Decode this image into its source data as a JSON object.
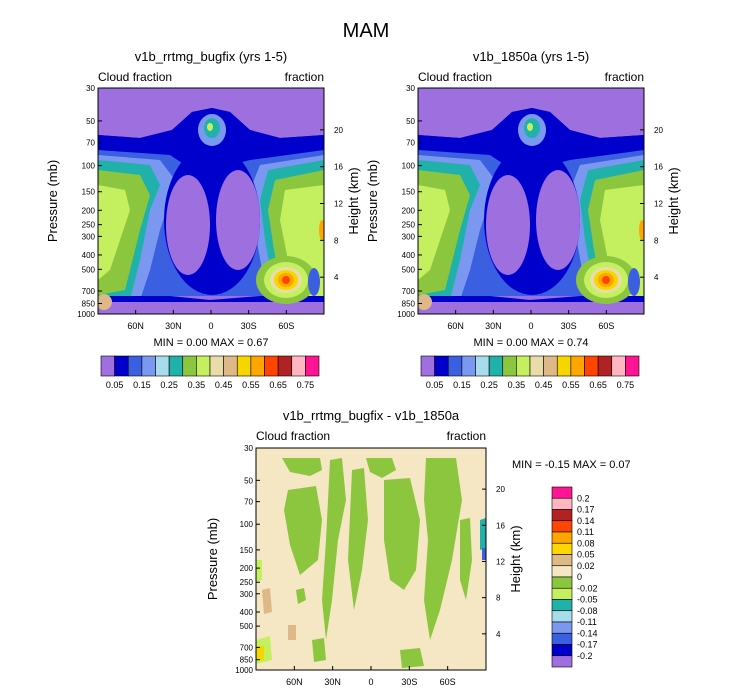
{
  "page_title": "MAM",
  "chart_data": [
    {
      "type": "contour",
      "title": "v1b_rrtmg_bugfix (yrs 1-5)",
      "left_label": "Cloud fraction",
      "right_label": "fraction",
      "ylabel": "Pressure (mb)",
      "ylabel_right": "Height (km)",
      "pressure_ticks": [
        "30",
        "50",
        "70",
        "100",
        "150",
        "200",
        "250",
        "300",
        "400",
        "500",
        "700",
        "850",
        "1000"
      ],
      "height_ticks": [
        "20",
        "16",
        "12",
        "8",
        "4"
      ],
      "lat_ticks": [
        "60N",
        "30N",
        "0",
        "30S",
        "60S"
      ],
      "stats": "MIN =   0.00   MAX =   0.67",
      "colorbar_labels": [
        "0.05",
        "0.15",
        "0.25",
        "0.35",
        "0.45",
        "0.55",
        "0.65",
        "0.75"
      ],
      "colorbar_colors": [
        "#9e6fdf",
        "#0000cd",
        "#3a5fe0",
        "#7b98f0",
        "#a8dcec",
        "#20b2aa",
        "#8cc63f",
        "#c4f060",
        "#e8dca8",
        "#deb887",
        "#f5d600",
        "#ffa500",
        "#ff4500",
        "#b22222",
        "#ffb6c1",
        "#ff1493"
      ]
    },
    {
      "type": "contour",
      "title": "v1b_1850a (yrs 1-5)",
      "left_label": "Cloud fraction",
      "right_label": "fraction",
      "ylabel": "Pressure (mb)",
      "ylabel_right": "Height (km)",
      "pressure_ticks": [
        "30",
        "50",
        "70",
        "100",
        "150",
        "200",
        "250",
        "300",
        "400",
        "500",
        "700",
        "850",
        "1000"
      ],
      "height_ticks": [
        "20",
        "16",
        "12",
        "8",
        "4"
      ],
      "lat_ticks": [
        "60N",
        "30N",
        "0",
        "30S",
        "60S"
      ],
      "stats": "MIN =   0.00   MAX =   0.74",
      "colorbar_labels": [
        "0.05",
        "0.15",
        "0.25",
        "0.35",
        "0.45",
        "0.55",
        "0.65",
        "0.75"
      ],
      "colorbar_colors": [
        "#9e6fdf",
        "#0000cd",
        "#3a5fe0",
        "#7b98f0",
        "#a8dcec",
        "#20b2aa",
        "#8cc63f",
        "#c4f060",
        "#e8dca8",
        "#deb887",
        "#f5d600",
        "#ffa500",
        "#ff4500",
        "#b22222",
        "#ffb6c1",
        "#ff1493"
      ]
    },
    {
      "type": "contour",
      "title": "v1b_rrtmg_bugfix - v1b_1850a",
      "left_label": "Cloud fraction",
      "right_label": "fraction",
      "ylabel": "Pressure (mb)",
      "ylabel_right": "Height (km)",
      "pressure_ticks": [
        "30",
        "50",
        "70",
        "100",
        "150",
        "200",
        "250",
        "300",
        "400",
        "500",
        "700",
        "850",
        "1000"
      ],
      "height_ticks": [
        "20",
        "16",
        "12",
        "8",
        "4"
      ],
      "lat_ticks": [
        "60N",
        "30N",
        "0",
        "30S",
        "60S"
      ],
      "stats": "MIN =  -0.15   MAX =  0.07",
      "colorbar_labels": [
        "0.2",
        "0.17",
        "0.14",
        "0.11",
        "0.08",
        "0.05",
        "0.02",
        "0",
        "-0.02",
        "-0.05",
        "-0.08",
        "-0.11",
        "-0.14",
        "-0.17",
        "-0.2"
      ],
      "colorbar_colors": [
        "#ff1493",
        "#ffb6c1",
        "#b22222",
        "#ff4500",
        "#ffa500",
        "#ffd700",
        "#deb887",
        "#f5e6c4",
        "#8cc63f",
        "#c4f060",
        "#20b2aa",
        "#a8dcec",
        "#7b98f0",
        "#3a5fe0",
        "#0000cd",
        "#9e6fdf"
      ]
    }
  ]
}
